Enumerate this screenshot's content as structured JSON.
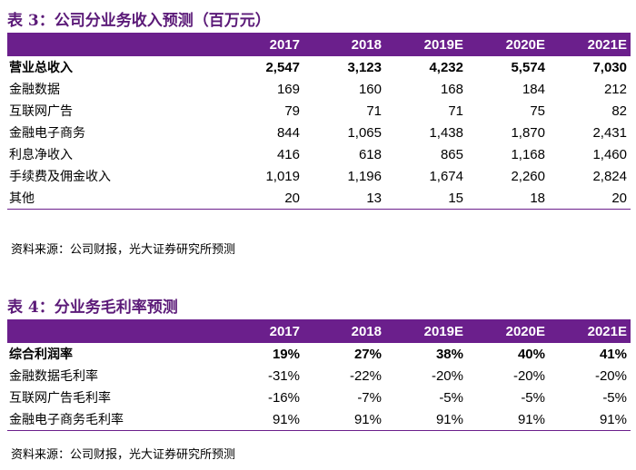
{
  "table3": {
    "label": "表 3：",
    "title": "公司分业务收入预测（百万元）",
    "headers": [
      "2017",
      "2018",
      "2019E",
      "2020E",
      "2021E"
    ],
    "rows": [
      {
        "name": "营业总收入",
        "values": [
          "2,547",
          "3,123",
          "4,232",
          "5,574",
          "7,030"
        ]
      },
      {
        "name": "金融数据",
        "values": [
          "169",
          "160",
          "168",
          "184",
          "212"
        ]
      },
      {
        "name": "互联网广告",
        "values": [
          "79",
          "71",
          "71",
          "75",
          "82"
        ]
      },
      {
        "name": "金融电子商务",
        "values": [
          "844",
          "1,065",
          "1,438",
          "1,870",
          "2,431"
        ]
      },
      {
        "name": "利息净收入",
        "values": [
          "416",
          "618",
          "865",
          "1,168",
          "1,460"
        ]
      },
      {
        "name": "手续费及佣金收入",
        "values": [
          "1,019",
          "1,196",
          "1,674",
          "2,260",
          "2,824"
        ]
      },
      {
        "name": "其他",
        "values": [
          "20",
          "13",
          "15",
          "18",
          "20"
        ]
      }
    ],
    "source": "资料来源：公司财报，光大证券研究所预测"
  },
  "table4": {
    "label": "表 4：",
    "title": "分业务毛利率预测",
    "headers": [
      "2017",
      "2018",
      "2019E",
      "2020E",
      "2021E"
    ],
    "rows": [
      {
        "name": "综合利润率",
        "values": [
          "19%",
          "27%",
          "38%",
          "40%",
          "41%"
        ]
      },
      {
        "name": "金融数据毛利率",
        "values": [
          "-31%",
          "-22%",
          "-20%",
          "-20%",
          "-20%"
        ]
      },
      {
        "name": "互联网广告毛利率",
        "values": [
          "-16%",
          "-7%",
          "-5%",
          "-5%",
          "-5%"
        ]
      },
      {
        "name": "金融电子商务毛利率",
        "values": [
          "91%",
          "91%",
          "91%",
          "91%",
          "91%"
        ]
      }
    ],
    "source": "资料来源：公司财报，光大证券研究所预测"
  },
  "colors": {
    "accent": "#6b1f8c",
    "caption": "#5b1a78"
  }
}
